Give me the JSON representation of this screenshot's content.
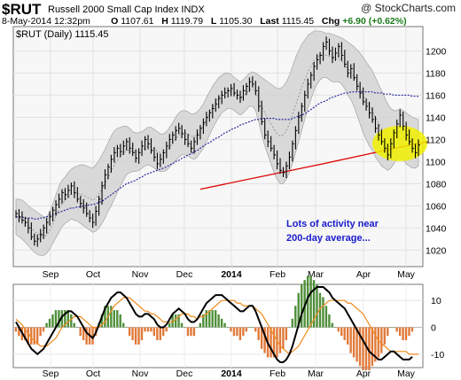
{
  "header": {
    "symbol": "$RUT",
    "name": "Russell 2000 Small Cap Index",
    "exchange": "INDX",
    "brand": "@ StockCharts.com",
    "date_time": "8-May-2014 12:32pm",
    "open_label": "O",
    "open": "1107.61",
    "high_label": "H",
    "high": "1119.79",
    "low_label": "L",
    "low": "1105.30",
    "last_label": "Last",
    "last": "1115.45",
    "chg_label": "Chg",
    "chg": "+6.90 (+0.62%)"
  },
  "chart_data": [
    {
      "type": "candlestick",
      "legend": "$RUT (Daily) 1115.45",
      "annotation": "Lots of activity near 200-day average...",
      "highlight": "yellow ellipse around May 2014 price touching 200-day average",
      "y_ticks": [
        1020,
        1040,
        1060,
        1080,
        1100,
        1120,
        1140,
        1160,
        1180,
        1200
      ],
      "ylim": [
        1005,
        1222
      ],
      "x_ticks": [
        "Sep",
        "Oct",
        "Nov",
        "Dec",
        "2014",
        "Feb",
        "Mar",
        "Apr",
        "May"
      ],
      "close": [
        1053,
        1050,
        1047,
        1045,
        1040,
        1032,
        1028,
        1030,
        1034,
        1040,
        1045,
        1050,
        1056,
        1061,
        1066,
        1072,
        1070,
        1074,
        1078,
        1072,
        1066,
        1062,
        1058,
        1053,
        1049,
        1045,
        1055,
        1066,
        1078,
        1088,
        1095,
        1102,
        1108,
        1112,
        1109,
        1114,
        1118,
        1112,
        1108,
        1103,
        1108,
        1114,
        1120,
        1116,
        1110,
        1104,
        1098,
        1102,
        1108,
        1114,
        1120,
        1124,
        1128,
        1130,
        1125,
        1120,
        1116,
        1112,
        1118,
        1124,
        1130,
        1135,
        1140,
        1144,
        1148,
        1152,
        1157,
        1160,
        1162,
        1164,
        1166,
        1162,
        1160,
        1158,
        1164,
        1168,
        1172,
        1170,
        1164,
        1150,
        1136,
        1124,
        1118,
        1112,
        1106,
        1098,
        1092,
        1090,
        1096,
        1104,
        1116,
        1128,
        1140,
        1150,
        1160,
        1170,
        1178,
        1186,
        1192,
        1196,
        1204,
        1208,
        1200,
        1194,
        1198,
        1204,
        1196,
        1188,
        1180,
        1184,
        1176,
        1168,
        1162,
        1154,
        1150,
        1144,
        1138,
        1130,
        1124,
        1118,
        1112,
        1106,
        1116,
        1126,
        1134,
        1142,
        1132,
        1124,
        1118,
        1112,
        1108,
        1115
      ],
      "ma50": [
        1050,
        1050,
        1050,
        1049,
        1049,
        1049,
        1048,
        1048,
        1049,
        1049,
        1050,
        1051,
        1052,
        1053,
        1054,
        1055,
        1056,
        1057,
        1058,
        1058,
        1059,
        1059,
        1060,
        1060,
        1061,
        1061,
        1062,
        1063,
        1064,
        1066,
        1068,
        1070,
        1072,
        1074,
        1076,
        1078,
        1080,
        1081,
        1082,
        1083,
        1085,
        1086,
        1088,
        1089,
        1090,
        1091,
        1092,
        1093,
        1094,
        1095,
        1097,
        1098,
        1100,
        1101,
        1103,
        1104,
        1106,
        1107,
        1109,
        1110,
        1112,
        1114,
        1116,
        1117,
        1119,
        1121,
        1122,
        1124,
        1126,
        1127,
        1129,
        1130,
        1131,
        1133,
        1134,
        1135,
        1136,
        1137,
        1138,
        1138,
        1139,
        1139,
        1139,
        1139,
        1139,
        1138,
        1138,
        1138,
        1138,
        1138,
        1139,
        1140,
        1141,
        1142,
        1143,
        1145,
        1147,
        1149,
        1151,
        1153,
        1154,
        1155,
        1157,
        1158,
        1159,
        1160,
        1161,
        1162,
        1162,
        1163,
        1163,
        1163,
        1163,
        1163,
        1163,
        1163,
        1163,
        1162,
        1162,
        1162,
        1161,
        1161,
        1161,
        1160,
        1160,
        1160,
        1160,
        1160,
        1160,
        1159,
        1159,
        1159
      ],
      "ma200": {
        "x": [
          60,
          100,
          110,
          120,
          130,
          134
        ],
        "y": [
          1075,
          1098,
          1104,
          1110,
          1116,
          1118
        ]
      },
      "bollinger_upper": [
        1066,
        1066,
        1065,
        1063,
        1060,
        1058,
        1056,
        1054,
        1052,
        1050,
        1050,
        1054,
        1062,
        1070,
        1078,
        1083,
        1086,
        1090,
        1093,
        1095,
        1096,
        1097,
        1097,
        1096,
        1095,
        1094,
        1097,
        1101,
        1106,
        1111,
        1117,
        1123,
        1128,
        1130,
        1131,
        1132,
        1132,
        1130,
        1127,
        1126,
        1126,
        1127,
        1129,
        1131,
        1131,
        1129,
        1127,
        1125,
        1125,
        1127,
        1131,
        1135,
        1140,
        1144,
        1146,
        1146,
        1145,
        1143,
        1143,
        1145,
        1148,
        1152,
        1158,
        1163,
        1168,
        1172,
        1176,
        1178,
        1180,
        1180,
        1179,
        1176,
        1174,
        1172,
        1174,
        1177,
        1180,
        1181,
        1180,
        1178,
        1176,
        1174,
        1172,
        1170,
        1168,
        1166,
        1166,
        1168,
        1172,
        1178,
        1186,
        1194,
        1200,
        1206,
        1210,
        1214,
        1216,
        1218,
        1218,
        1218,
        1217,
        1216,
        1216,
        1215,
        1214,
        1213,
        1212,
        1210,
        1208,
        1206,
        1204,
        1201,
        1198,
        1194,
        1190,
        1186,
        1182,
        1176,
        1170,
        1164,
        1158,
        1152,
        1148,
        1146,
        1146,
        1148,
        1146,
        1144,
        1142,
        1140,
        1139,
        1138
      ],
      "bollinger_lower": [
        1034,
        1032,
        1030,
        1027,
        1024,
        1021,
        1018,
        1016,
        1015,
        1015,
        1017,
        1021,
        1026,
        1031,
        1036,
        1041,
        1044,
        1046,
        1048,
        1047,
        1046,
        1044,
        1042,
        1040,
        1038,
        1036,
        1037,
        1040,
        1044,
        1049,
        1055,
        1060,
        1066,
        1072,
        1078,
        1083,
        1088,
        1090,
        1091,
        1091,
        1092,
        1094,
        1096,
        1097,
        1096,
        1094,
        1092,
        1091,
        1091,
        1092,
        1095,
        1098,
        1101,
        1104,
        1106,
        1106,
        1105,
        1103,
        1102,
        1104,
        1108,
        1112,
        1118,
        1124,
        1130,
        1135,
        1140,
        1144,
        1146,
        1148,
        1148,
        1146,
        1144,
        1142,
        1144,
        1147,
        1150,
        1150,
        1146,
        1136,
        1124,
        1114,
        1106,
        1098,
        1090,
        1084,
        1080,
        1080,
        1084,
        1090,
        1098,
        1108,
        1118,
        1128,
        1138,
        1148,
        1156,
        1164,
        1170,
        1174,
        1176,
        1176,
        1174,
        1172,
        1172,
        1172,
        1170,
        1166,
        1160,
        1156,
        1150,
        1142,
        1134,
        1126,
        1120,
        1114,
        1110,
        1104,
        1100,
        1096,
        1094,
        1092,
        1094,
        1098,
        1102,
        1106,
        1102,
        1098,
        1096,
        1094,
        1094,
        1096
      ]
    },
    {
      "type": "line",
      "name": "MACD panel",
      "y_ticks": [
        10,
        0,
        -10
      ],
      "ylim": [
        -15,
        16
      ],
      "x_ticks": [
        "Sep",
        "Oct",
        "Nov",
        "Dec",
        "2014",
        "Feb",
        "Mar",
        "Apr",
        "May"
      ],
      "macd": [
        2,
        0,
        -2,
        -4,
        -6,
        -8,
        -9,
        -10,
        -9,
        -8,
        -6,
        -4,
        -2,
        0,
        2,
        4,
        5,
        6,
        6,
        5,
        4,
        2,
        0,
        -2,
        -3,
        -4,
        -2,
        1,
        4,
        7,
        9,
        11,
        12,
        13,
        13,
        12,
        11,
        9,
        7,
        5,
        4,
        4,
        5,
        5,
        4,
        3,
        1,
        0,
        0,
        1,
        3,
        5,
        6,
        7,
        6,
        5,
        3,
        2,
        2,
        3,
        5,
        7,
        9,
        10,
        11,
        12,
        12,
        12,
        11,
        10,
        9,
        8,
        7,
        6,
        6,
        7,
        8,
        8,
        6,
        3,
        0,
        -3,
        -6,
        -8,
        -10,
        -12,
        -13,
        -13,
        -12,
        -10,
        -7,
        -3,
        1,
        5,
        8,
        11,
        13,
        14,
        15,
        15,
        15,
        14,
        13,
        11,
        10,
        9,
        8,
        7,
        5,
        3,
        1,
        -1,
        -3,
        -5,
        -7,
        -9,
        -10,
        -11,
        -12,
        -12,
        -11,
        -10,
        -9,
        -9,
        -10,
        -11,
        -12,
        -12,
        -12,
        -11
      ],
      "signal": [
        3,
        2,
        1,
        -1,
        -2,
        -4,
        -5,
        -6,
        -7,
        -7,
        -7,
        -6,
        -5,
        -4,
        -2,
        0,
        1,
        2,
        3,
        4,
        4,
        4,
        3,
        2,
        1,
        0,
        0,
        0,
        1,
        2,
        4,
        6,
        8,
        9,
        10,
        11,
        11,
        11,
        10,
        9,
        8,
        7,
        6,
        6,
        5,
        5,
        4,
        3,
        2,
        2,
        2,
        2,
        3,
        4,
        5,
        5,
        5,
        4,
        4,
        3,
        4,
        4,
        5,
        6,
        7,
        8,
        9,
        10,
        10,
        10,
        10,
        10,
        9,
        9,
        8,
        8,
        8,
        8,
        7,
        6,
        5,
        3,
        1,
        -1,
        -3,
        -5,
        -7,
        -8,
        -9,
        -10,
        -9,
        -8,
        -7,
        -5,
        -3,
        -1,
        1,
        3,
        5,
        7,
        8,
        9,
        10,
        10,
        10,
        10,
        10,
        10,
        9,
        9,
        8,
        7,
        6,
        5,
        3,
        1,
        -1,
        -3,
        -5,
        -6,
        -7,
        -8,
        -9,
        -9,
        -9,
        -9,
        -9,
        -9,
        -10,
        -10,
        -10,
        -10
      ]
    }
  ],
  "colors": {
    "band": "#d4d4d4",
    "ma50": "#2a2aa0",
    "mid": "#8a8a8a",
    "ma200": "#e00000",
    "annotation": "#1a1acc",
    "highlight": "#f0f000",
    "macd": "#000000",
    "signal": "#f08a1c",
    "hist_pos": "#4f8f3a",
    "hist_neg": "#e07a3a"
  }
}
